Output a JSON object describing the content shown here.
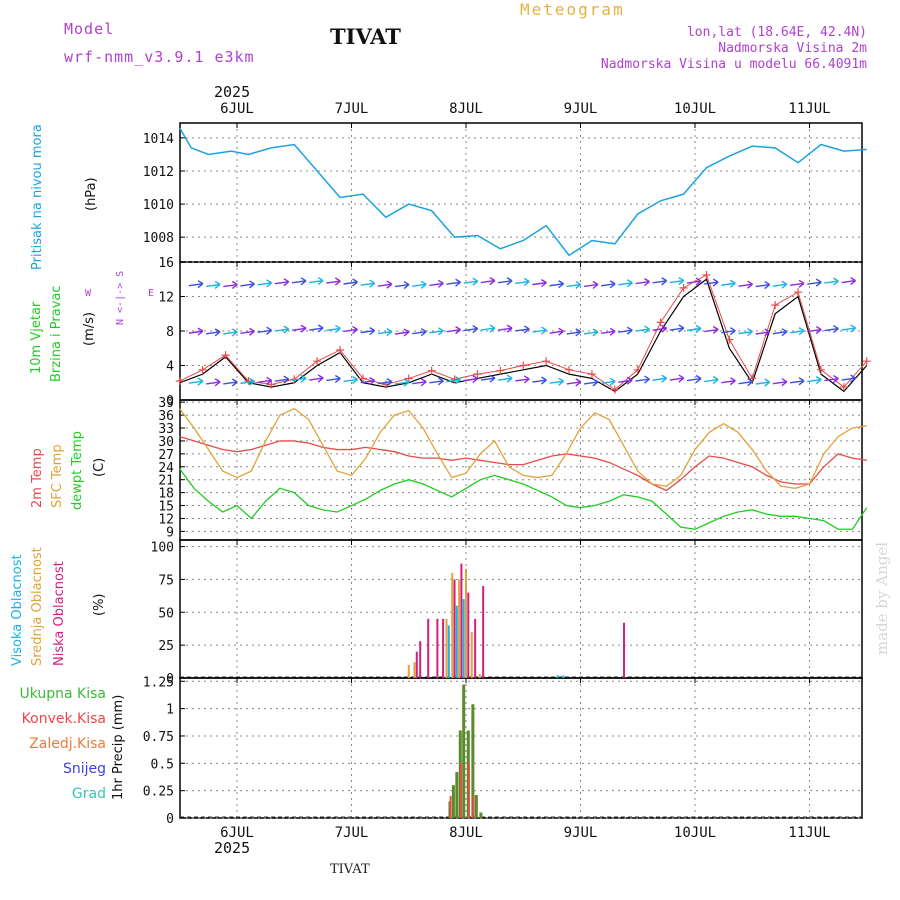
{
  "header": {
    "model_label": "Model",
    "model_name": "wrf-nmm_v3.9.1  e3km",
    "station": "TIVAT",
    "meteogram": "Meteogram",
    "lonlat": "lon,lat (18.64E, 42.4N)",
    "elevation": "Nadmorska Visina 2m",
    "model_elevation": "Nadmorska Visina u modelu 66.4091m",
    "watermark": "made by Angel",
    "footer_station": "TIVAT",
    "year": "2025"
  },
  "colors": {
    "pressure": "#1aa3e0",
    "temp2m": "#e84a4a",
    "sfc": "#e0a33a",
    "dewpt": "#22cc22",
    "high_cloud": "#1ab3e6",
    "mid_cloud": "#e0a33a",
    "low_cloud": "#d0207f",
    "total_precip": "#3cb83c",
    "conv_precip": "#e84a4a",
    "frozen_precip": "#f07a3a",
    "snow": "#4040e0",
    "hail": "#33c6b0",
    "header_purple": "#b040d0",
    "header_orange": "#e8b040"
  },
  "days": [
    "6JUL",
    "7JUL",
    "8JUL",
    "9JUL",
    "10JUL",
    "11JUL"
  ],
  "left_labels": {
    "pressure": "Pritisak na nivou mora",
    "pressure_unit": "(hPa)",
    "wind1": "10m Vjetar",
    "wind2": "Brzina i Pravac",
    "wind_unit": "(m/s)",
    "compass": "N <-|-> S",
    "compass_w": "W",
    "compass_e": "E",
    "temp1": "2m Temp",
    "temp2": "SFC Temp",
    "temp3": "dewpt Temp",
    "temp_unit": "(C)",
    "cloud1": "Visoka Oblacnost",
    "cloud2": "Srednja Oblacnost",
    "cloud3": "Niska Oblacnost",
    "cloud_unit": "(%)",
    "precip_unit": "1hr Precip (mm)",
    "p_total": "Ukupna Kisa",
    "p_conv": "Konvek.Kisa",
    "p_frozen": "Zaledj.Kisa",
    "p_snow": "Snijeg",
    "p_hail": "Grad"
  },
  "chart_data": [
    {
      "type": "line",
      "title": "Pritisak na nivou mora",
      "ylabel": "(hPa)",
      "ylim": [
        1006.5,
        1014.9
      ],
      "yticks": [
        1008,
        1010,
        1012,
        1014
      ],
      "x_days": [
        0.0,
        0.1,
        0.25,
        0.45,
        0.6,
        0.8,
        1.0,
        1.2,
        1.4,
        1.6,
        1.8,
        2.0,
        2.2,
        2.4,
        2.6,
        2.8,
        3.0,
        3.2,
        3.4,
        3.6,
        3.8,
        4.0,
        4.2,
        4.4,
        4.6,
        4.8,
        5.0,
        5.2,
        5.4,
        5.6,
        5.8,
        6.0
      ],
      "values": [
        1014.6,
        1013.4,
        1013.0,
        1013.2,
        1013.0,
        1013.4,
        1013.6,
        1012.0,
        1010.4,
        1010.6,
        1009.2,
        1010.0,
        1009.6,
        1008.0,
        1008.1,
        1007.3,
        1007.8,
        1008.7,
        1006.9,
        1007.8,
        1007.6,
        1009.4,
        1010.2,
        1010.6,
        1012.2,
        1012.9,
        1013.5,
        1013.4,
        1012.5,
        1013.6,
        1013.2,
        1013.3
      ]
    },
    {
      "type": "line",
      "title": "10m Vjetar Brzina i Pravac",
      "ylabel": "(m/s)",
      "ylim": [
        0,
        16
      ],
      "yticks": [
        0,
        4,
        8,
        12,
        16
      ],
      "x_days": [
        0.0,
        0.2,
        0.4,
        0.6,
        0.8,
        1.0,
        1.2,
        1.4,
        1.6,
        1.8,
        2.0,
        2.2,
        2.4,
        2.6,
        2.8,
        3.0,
        3.2,
        3.4,
        3.6,
        3.8,
        4.0,
        4.2,
        4.4,
        4.6,
        4.8,
        5.0,
        5.2,
        5.4,
        5.6,
        5.8,
        6.0
      ],
      "series": [
        {
          "name": "Brzina",
          "values": [
            2.0,
            3.0,
            5.0,
            2.0,
            1.5,
            2.0,
            4.0,
            5.5,
            2.0,
            1.5,
            2.0,
            3.0,
            2.0,
            2.5,
            3.0,
            3.5,
            4.0,
            3.0,
            2.5,
            1.0,
            3.0,
            8.0,
            12.0,
            14.0,
            6.0,
            2.0,
            10.0,
            12.0,
            3.0,
            1.0,
            4.0
          ]
        },
        {
          "name": "Udari",
          "values": [
            2.2,
            3.5,
            5.2,
            2.2,
            1.8,
            2.4,
            4.5,
            5.8,
            2.5,
            1.8,
            2.5,
            3.4,
            2.4,
            3.0,
            3.4,
            4.0,
            4.5,
            3.5,
            3.0,
            1.2,
            3.5,
            9.0,
            13.0,
            14.5,
            7.0,
            2.5,
            11.0,
            12.5,
            3.5,
            1.5,
            4.5
          ]
        }
      ]
    },
    {
      "type": "line",
      "title": "2m Temp / SFC Temp / dewpt Temp",
      "ylabel": "(C)",
      "ylim": [
        7,
        39.5
      ],
      "yticks": [
        9,
        12,
        15,
        18,
        21,
        24,
        27,
        30,
        33,
        36,
        39
      ],
      "x_days": [
        0.0,
        0.125,
        0.25,
        0.375,
        0.5,
        0.625,
        0.75,
        0.875,
        1.0,
        1.125,
        1.25,
        1.375,
        1.5,
        1.625,
        1.75,
        1.875,
        2.0,
        2.125,
        2.25,
        2.375,
        2.5,
        2.625,
        2.75,
        2.875,
        3.0,
        3.125,
        3.25,
        3.375,
        3.5,
        3.625,
        3.75,
        3.875,
        4.0,
        4.125,
        4.25,
        4.375,
        4.5,
        4.625,
        4.75,
        4.875,
        5.0,
        5.125,
        5.25,
        5.375,
        5.5,
        5.625,
        5.75,
        5.875,
        6.0
      ],
      "series": [
        {
          "name": "2m Temp",
          "values": [
            31,
            30,
            29,
            28,
            27.5,
            28,
            29,
            30,
            30,
            29.5,
            28.5,
            28,
            28,
            28.5,
            28,
            27.5,
            26.5,
            26,
            26,
            25.5,
            26,
            25.5,
            25,
            24.5,
            24.5,
            25.5,
            26.5,
            27,
            26.5,
            26,
            25,
            23.5,
            22,
            20,
            18.5,
            21,
            24,
            26.5,
            26,
            25,
            24,
            22,
            20.5,
            20,
            20,
            24,
            27,
            26,
            25.5
          ]
        },
        {
          "name": "SFC Temp",
          "values": [
            37.5,
            33,
            28,
            23,
            21.5,
            23,
            30,
            36,
            37.5,
            35,
            29,
            23,
            22,
            26,
            32,
            36,
            37,
            33,
            27,
            21.5,
            22.5,
            27,
            30,
            24,
            22,
            21.5,
            22,
            27,
            33,
            36.5,
            35,
            29,
            23,
            20,
            19.5,
            22,
            28,
            32,
            34,
            32,
            28,
            23,
            19.5,
            19,
            20,
            27,
            31,
            33,
            33.5
          ]
        },
        {
          "name": "dewpt Temp",
          "values": [
            23.5,
            19,
            16,
            13.5,
            15,
            12,
            16,
            19,
            18,
            15,
            14,
            13.5,
            15,
            16.5,
            18.5,
            20,
            21,
            20,
            18.5,
            17,
            19,
            21,
            22,
            21,
            20,
            18.5,
            17,
            15,
            14.5,
            15,
            16,
            17.5,
            17,
            16,
            13,
            10,
            9.5,
            11,
            12.5,
            13.5,
            14,
            13,
            12.5,
            12.5,
            12,
            11.5,
            9.5,
            9.5,
            14.5
          ]
        }
      ]
    },
    {
      "type": "bar",
      "title": "Oblacnost",
      "ylabel": "(%)",
      "ylim": [
        0,
        105
      ],
      "yticks": [
        0,
        25,
        50,
        75,
        100
      ],
      "series": [
        {
          "name": "Visoka Oblacnost",
          "x_days": [
            2.35,
            2.42,
            2.48,
            3.3,
            3.35
          ],
          "values": [
            40,
            55,
            60,
            2,
            2
          ]
        },
        {
          "name": "Srednja Oblacnost",
          "x_days": [
            2.0,
            2.05,
            2.33,
            2.38,
            2.44,
            2.5,
            2.55,
            2.62
          ],
          "values": [
            10,
            12,
            45,
            80,
            75,
            83,
            35,
            3
          ]
        },
        {
          "name": "Niska Oblacnost",
          "x_days": [
            2.07,
            2.1,
            2.17,
            2.25,
            2.3,
            2.4,
            2.46,
            2.52,
            2.58,
            2.65,
            3.88
          ],
          "values": [
            20,
            28,
            45,
            45,
            45,
            75,
            87,
            65,
            45,
            70,
            42
          ]
        }
      ]
    },
    {
      "type": "bar",
      "title": "1hr Precip",
      "ylabel": "1hr Precip (mm)",
      "ylim": [
        0,
        1.28
      ],
      "yticks": [
        0,
        0.25,
        0.5,
        0.75,
        1,
        1.25
      ],
      "series": [
        {
          "name": "Ukupna Kisa",
          "x_days": [
            2.36,
            2.39,
            2.42,
            2.45,
            2.48,
            2.52,
            2.56,
            2.59,
            2.63
          ],
          "values": [
            0.15,
            0.3,
            0.42,
            0.8,
            1.22,
            0.8,
            1.04,
            0.21,
            0.05
          ]
        },
        {
          "name": "Konvek.Kisa",
          "x_days": [
            2.37,
            2.46,
            2.53,
            2.57
          ],
          "values": [
            0.2,
            0.5,
            0.5,
            0.2
          ]
        }
      ]
    }
  ]
}
